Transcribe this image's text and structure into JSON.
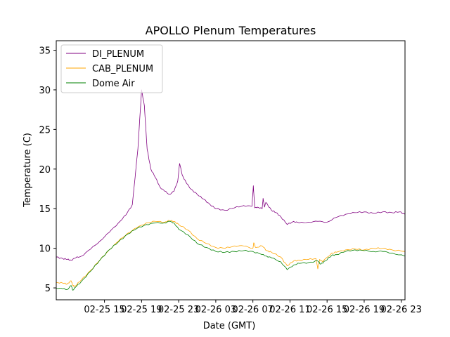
{
  "chart_data": {
    "type": "line",
    "title": "APOLLO Plenum Temperatures",
    "xlabel": "Date (GMT)",
    "ylabel": "Temperature (C)",
    "xlim": [
      9.8,
      47.4
    ],
    "ylim": [
      3.5,
      36.2
    ],
    "x_unit": "hours since 2019-02-25 00:00 GMT",
    "x_ticks": [
      {
        "value": 15,
        "label": "02-25 15"
      },
      {
        "value": 19,
        "label": "02-25 19"
      },
      {
        "value": 23,
        "label": "02-25 23"
      },
      {
        "value": 27,
        "label": "02-26 03"
      },
      {
        "value": 31,
        "label": "02-26 07"
      },
      {
        "value": 35,
        "label": "02-26 11"
      },
      {
        "value": 39,
        "label": "02-26 15"
      },
      {
        "value": 43,
        "label": "02-26 19"
      },
      {
        "value": 47,
        "label": "02-26 23"
      }
    ],
    "y_ticks": [
      5,
      10,
      15,
      20,
      25,
      30,
      35
    ],
    "legend_position": "top-left",
    "series": [
      {
        "name": "DI_PLENUM",
        "color": "#800080",
        "x": [
          9.8,
          10.5,
          11.0,
          11.4,
          11.9,
          12.5,
          13.5,
          14.5,
          15.5,
          16.5,
          17.3,
          18.0,
          18.6,
          19.0,
          19.3,
          19.6,
          20.0,
          20.5,
          21.0,
          21.5,
          22.0,
          22.5,
          22.9,
          23.1,
          23.4,
          23.8,
          24.3,
          25.0,
          25.7,
          26.4,
          27.0,
          28.0,
          29.0,
          30.0,
          30.9,
          31.05,
          31.2,
          31.5,
          32.0,
          32.1,
          32.25,
          32.4,
          33.0,
          33.5,
          34.0,
          34.7,
          35.4,
          36.0,
          37.0,
          38.0,
          39.0,
          40.0,
          41.0,
          42.0,
          43.0,
          44.0,
          45.0,
          46.0,
          46.8,
          47.4
        ],
        "y": [
          8.9,
          8.7,
          8.6,
          8.5,
          8.8,
          9.0,
          9.9,
          10.9,
          12.0,
          13.2,
          14.2,
          15.5,
          22.5,
          30.0,
          28.0,
          22.5,
          20.0,
          18.9,
          17.7,
          17.2,
          16.8,
          17.2,
          18.5,
          20.7,
          19.2,
          18.3,
          17.5,
          16.8,
          16.2,
          15.5,
          15.0,
          14.8,
          15.1,
          15.4,
          15.3,
          17.9,
          15.1,
          15.2,
          15.0,
          16.3,
          15.2,
          15.8,
          14.8,
          14.5,
          14.0,
          13.0,
          13.4,
          13.2,
          13.3,
          13.4,
          13.3,
          13.9,
          14.3,
          14.5,
          14.6,
          14.4,
          14.6,
          14.5,
          14.6,
          14.3
        ]
      },
      {
        "name": "CAB_PLENUM",
        "color": "#ffa500",
        "x": [
          9.8,
          10.5,
          11.0,
          11.4,
          11.6,
          11.8,
          12.5,
          13.5,
          14.5,
          15.5,
          16.5,
          17.5,
          18.5,
          19.5,
          20.5,
          21.5,
          22.0,
          22.5,
          23.0,
          24.0,
          25.0,
          26.0,
          27.0,
          28.0,
          29.0,
          30.0,
          31.0,
          31.1,
          31.3,
          32.0,
          32.5,
          33.0,
          34.0,
          34.7,
          35.4,
          36.0,
          37.0,
          37.8,
          38.0,
          38.2,
          38.5,
          39.5,
          40.0,
          41.0,
          42.0,
          43.0,
          44.0,
          45.0,
          46.0,
          47.4
        ],
        "y": [
          5.7,
          5.6,
          5.5,
          5.9,
          5.3,
          5.2,
          6.0,
          7.2,
          8.5,
          9.8,
          10.9,
          11.9,
          12.6,
          13.2,
          13.4,
          13.3,
          13.5,
          13.4,
          13.0,
          12.3,
          11.2,
          10.6,
          10.1,
          10.0,
          10.3,
          10.3,
          10.0,
          10.7,
          10.1,
          10.3,
          9.7,
          9.5,
          8.9,
          7.8,
          8.4,
          8.5,
          8.6,
          8.7,
          7.4,
          8.6,
          8.3,
          9.4,
          9.5,
          9.8,
          9.9,
          9.8,
          10.0,
          10.0,
          9.8,
          9.6
        ]
      },
      {
        "name": "Dome Air",
        "color": "#008000",
        "x": [
          9.8,
          10.5,
          11.0,
          11.4,
          11.6,
          11.8,
          12.5,
          13.5,
          14.5,
          15.5,
          16.5,
          17.5,
          18.5,
          19.5,
          20.5,
          21.5,
          22.0,
          22.5,
          23.0,
          24.0,
          25.0,
          26.0,
          27.0,
          28.0,
          29.0,
          30.0,
          31.0,
          32.0,
          32.5,
          33.0,
          34.0,
          34.7,
          35.4,
          36.0,
          37.0,
          38.0,
          38.3,
          38.8,
          39.5,
          40.0,
          41.0,
          42.0,
          43.0,
          44.0,
          45.0,
          46.0,
          47.4
        ],
        "y": [
          5.0,
          4.9,
          4.8,
          5.3,
          4.7,
          5.0,
          5.8,
          7.1,
          8.5,
          9.8,
          10.8,
          11.8,
          12.5,
          13.0,
          13.2,
          13.2,
          13.4,
          13.2,
          12.4,
          11.7,
          10.6,
          10.1,
          9.6,
          9.5,
          9.6,
          9.7,
          9.6,
          9.2,
          9.0,
          8.8,
          8.3,
          7.3,
          7.9,
          8.1,
          8.2,
          8.4,
          8.0,
          8.4,
          9.1,
          9.2,
          9.6,
          9.8,
          9.7,
          9.6,
          9.6,
          9.4,
          9.0
        ]
      }
    ]
  }
}
